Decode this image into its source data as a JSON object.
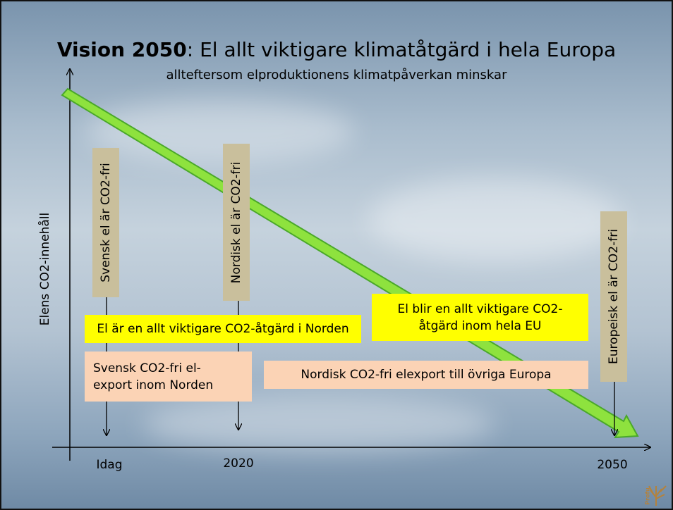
{
  "title": {
    "emphasis": "Vision 2050",
    "rest": ": El allt viktigare klimatåtgärd i hela Europa"
  },
  "subtitle": "allteftersom elproduktionens klimatpåverkan minskar",
  "y_axis_label": "Elens CO2-innehåll",
  "x_labels": [
    "Idag",
    "2020",
    "2050"
  ],
  "milestones": [
    "Svensk el är CO2-fri",
    "Nordisk el är CO2-fri",
    "Europeisk el är CO2-fri"
  ],
  "yellow_boxes": [
    {
      "lines": [
        "El är en allt viktigare CO2-åtgärd i Norden"
      ]
    },
    {
      "lines": [
        "El blir en allt viktigare CO2-",
        "åtgärd inom hela EU"
      ]
    }
  ],
  "peach_boxes": [
    {
      "lines": [
        "Svensk CO2-fri el-",
        "export inom Norden"
      ]
    },
    {
      "lines": [
        "Nordisk CO2-fri elexport till övriga Europa"
      ]
    }
  ],
  "logo": "Profu"
}
